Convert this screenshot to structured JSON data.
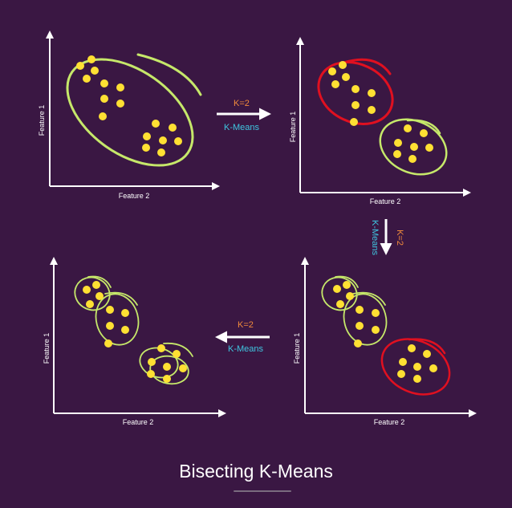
{
  "title": "Bisecting K-Means",
  "colors": {
    "background": "#3a1743",
    "point": "#ffe033",
    "cluster_final": "#c6e86a",
    "cluster_to_split": "#e01020",
    "axis": "#ffffff",
    "k_label": "#f08a3c",
    "algorithm_label": "#3fc6e0"
  },
  "panels": [
    {
      "id": "step-1",
      "xlabel": "Feature 2",
      "ylabel": "Feature 1"
    },
    {
      "id": "step-2",
      "xlabel": "Feature 2",
      "ylabel": "Feature 1"
    },
    {
      "id": "step-3",
      "xlabel": "Feature 2",
      "ylabel": "Feature 1"
    },
    {
      "id": "step-4",
      "xlabel": "Feature 2",
      "ylabel": "Feature 1"
    }
  ],
  "transitions": [
    {
      "from": "step-1",
      "to": "step-2",
      "direction": "right",
      "k_label": "K=2",
      "algorithm_label": "K-Means"
    },
    {
      "from": "step-2",
      "to": "step-3",
      "direction": "down",
      "k_label": "K=2",
      "algorithm_label": "K-Means"
    },
    {
      "from": "step-3",
      "to": "step-4",
      "direction": "left",
      "k_label": "K=2",
      "algorithm_label": "K-Means"
    }
  ]
}
